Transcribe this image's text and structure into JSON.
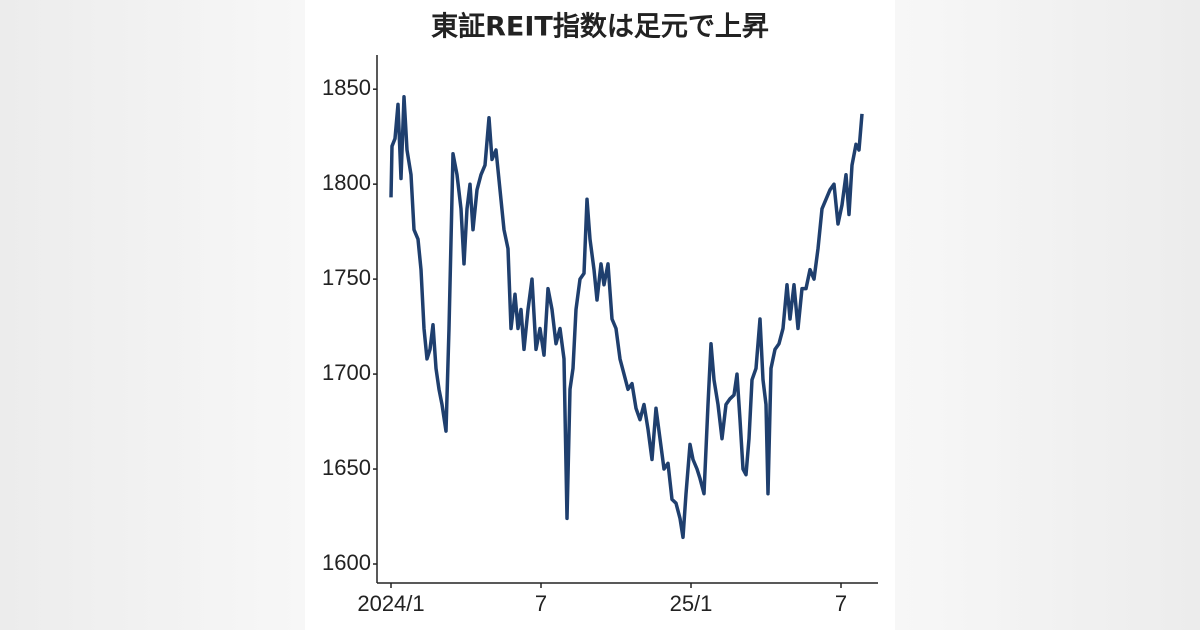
{
  "chart_data": {
    "type": "line",
    "title": "東証REIT指数は足元で上昇",
    "x": [
      0,
      0.04,
      0.16,
      0.28,
      0.4,
      0.52,
      0.64,
      0.8,
      0.92,
      1.08,
      1.2,
      1.32,
      1.44,
      1.56,
      1.68,
      1.8,
      1.92,
      2.04,
      2.2,
      2.32,
      2.48,
      2.64,
      2.8,
      2.92,
      3.04,
      3.16,
      3.28,
      3.44,
      3.6,
      3.76,
      3.92,
      4.04,
      4.2,
      4.36,
      4.52,
      4.68,
      4.8,
      4.96,
      5.08,
      5.2,
      5.32,
      5.48,
      5.64,
      5.8,
      5.96,
      6.12,
      6.28,
      6.44,
      6.6,
      6.76,
      6.92,
      7.04,
      7.16,
      7.28,
      7.4,
      7.56,
      7.72,
      7.84,
      7.96,
      8.12,
      8.24,
      8.4,
      8.52,
      8.68,
      8.84,
      9.0,
      9.16,
      9.32,
      9.48,
      9.64,
      9.8,
      9.96,
      10.12,
      10.28,
      10.44,
      10.6,
      10.76,
      10.92,
      11.08,
      11.24,
      11.4,
      11.56,
      11.68,
      11.8,
      11.96,
      12.08,
      12.24,
      12.36,
      12.52,
      12.68,
      12.8,
      12.92,
      13.08,
      13.24,
      13.4,
      13.56,
      13.72,
      13.84,
      13.96,
      14.08,
      14.2,
      14.32,
      14.44,
      14.6,
      14.76,
      14.88,
      15.0,
      15.08,
      15.2,
      15.36,
      15.52,
      15.68,
      15.84,
      15.96,
      16.12,
      16.28,
      16.44,
      16.6,
      16.76,
      16.92,
      17.08,
      17.24,
      17.4,
      17.56,
      17.72,
      17.88,
      18.04,
      18.2,
      18.32,
      18.44,
      18.6,
      18.72,
      18.84
    ],
    "values": [
      1793,
      1820,
      1824,
      1842,
      1803,
      1846,
      1818,
      1805,
      1776,
      1771,
      1755,
      1724,
      1708,
      1713,
      1726,
      1703,
      1692,
      1684,
      1670,
      1724,
      1816,
      1805,
      1787,
      1758,
      1787,
      1800,
      1776,
      1797,
      1805,
      1810,
      1835,
      1813,
      1818,
      1797,
      1776,
      1766,
      1724,
      1742,
      1724,
      1734,
      1713,
      1734,
      1750,
      1713,
      1724,
      1710,
      1745,
      1734,
      1716,
      1724,
      1708,
      1624,
      1692,
      1703,
      1734,
      1750,
      1753,
      1792,
      1771,
      1755,
      1739,
      1758,
      1747,
      1758,
      1729,
      1724,
      1708,
      1700,
      1692,
      1695,
      1682,
      1676,
      1684,
      1671,
      1655,
      1682,
      1666,
      1650,
      1653,
      1634,
      1632,
      1624,
      1614,
      1637,
      1663,
      1655,
      1650,
      1645,
      1637,
      1684,
      1716,
      1697,
      1684,
      1666,
      1684,
      1687,
      1689,
      1700,
      1676,
      1650,
      1647,
      1666,
      1697,
      1703,
      1729,
      1697,
      1684,
      1637,
      1703,
      1713,
      1716,
      1724,
      1747,
      1729,
      1747,
      1724,
      1745,
      1745,
      1755,
      1750,
      1766,
      1787,
      1792,
      1797,
      1800,
      1779,
      1789,
      1805,
      1784,
      1810,
      1821,
      1818,
      1837
    ],
    "color": "#1f3f6e",
    "xlim": [
      -0.56,
      19.48
    ],
    "xticks": [
      {
        "value": 0,
        "label": "2024/1"
      },
      {
        "value": 6,
        "label": "7"
      },
      {
        "value": 12,
        "label": "25/1"
      },
      {
        "value": 18,
        "label": "7"
      }
    ],
    "ylim": [
      1590,
      1868
    ],
    "yticks": [
      1600,
      1650,
      1700,
      1750,
      1800,
      1850
    ],
    "grid": false
  }
}
